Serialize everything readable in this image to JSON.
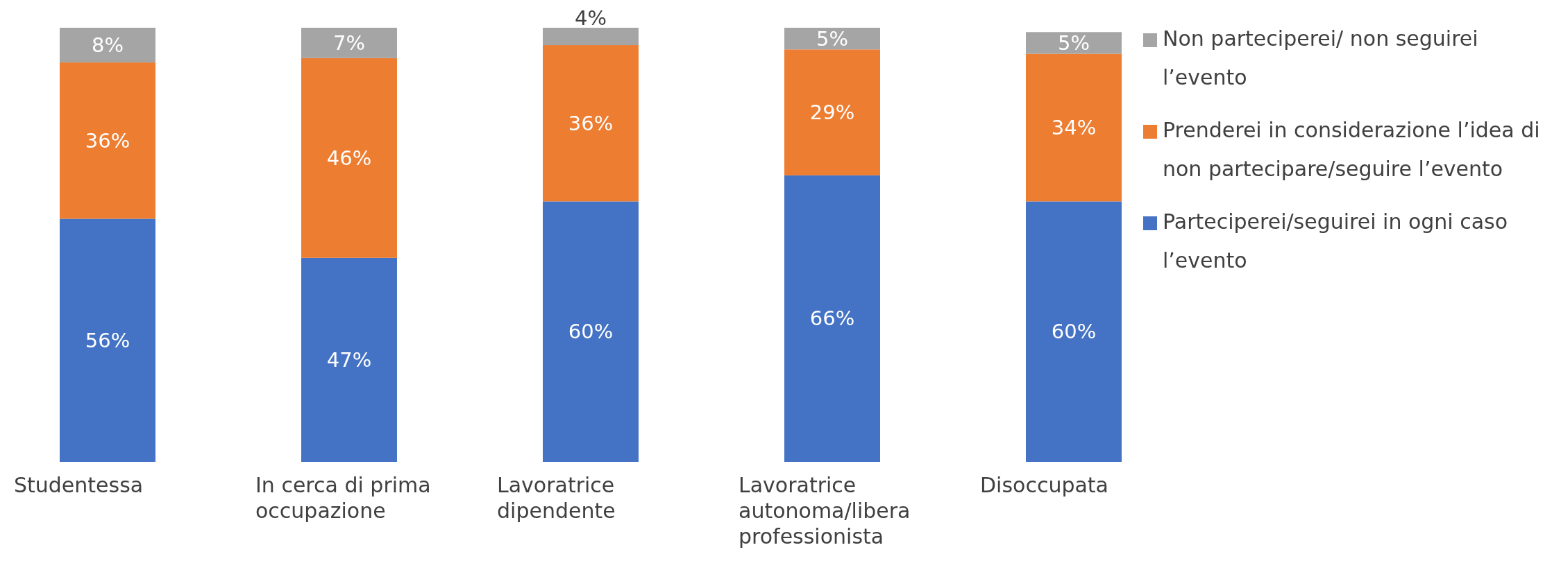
{
  "chart_data": {
    "type": "bar",
    "stacked": true,
    "legend": "right",
    "categories": [
      "Studentessa",
      "In cerca di prima occupazione",
      "Lavoratrice dipendente",
      "Lavoratrice autonoma/libera professionista",
      "Disoccupata"
    ],
    "series": [
      {
        "name": "Parteciperei/seguirei in ogni caso l’evento",
        "color": "#4472c4",
        "values": [
          56,
          47,
          60,
          66,
          60
        ],
        "value_labels": [
          "56%",
          "47%",
          "60%",
          "66%",
          "60%"
        ]
      },
      {
        "name": "Prenderei in considerazione l’idea di non partecipare/seguire l’evento",
        "color": "#ed7d31",
        "values": [
          36,
          46,
          36,
          29,
          34
        ],
        "value_labels": [
          "36%",
          "46%",
          "36%",
          "29%",
          "34%"
        ]
      },
      {
        "name": "Non parteciperei/ non seguirei l’evento",
        "color": "#a5a5a5",
        "values": [
          8,
          7,
          4,
          5,
          5
        ],
        "value_labels": [
          "8%",
          "7%",
          "4%",
          "5%",
          "5%"
        ]
      }
    ]
  }
}
